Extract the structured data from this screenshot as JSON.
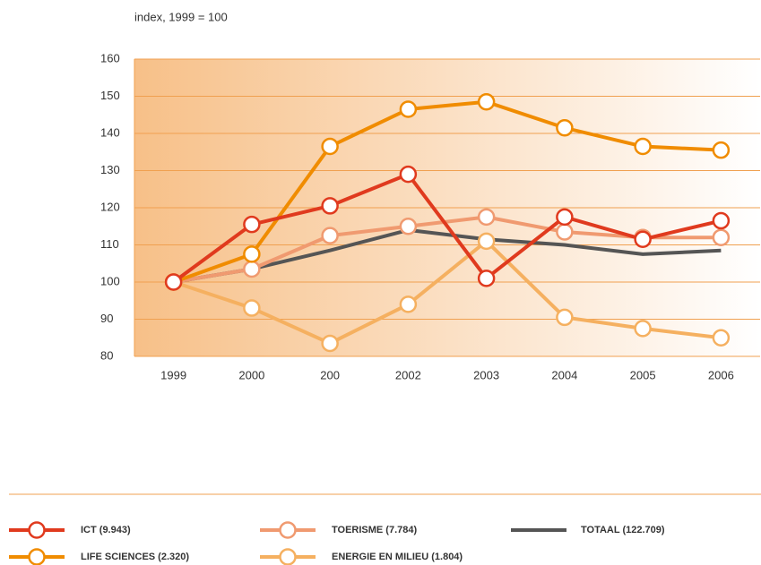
{
  "chart_data": {
    "type": "line",
    "subtitle": "index, 1999 = 100",
    "categories": [
      "1999",
      "2000",
      "200",
      "2002",
      "2003",
      "2004",
      "2005",
      "2006"
    ],
    "series": [
      {
        "name": "ICT (9.943)",
        "color": "#e03a1e",
        "marker": true,
        "values": [
          100,
          115.5,
          120.5,
          129,
          101,
          117.5,
          111.5,
          116.5
        ]
      },
      {
        "name": "LIFE SCIENCES (2.320)",
        "color": "#f08c00",
        "marker": true,
        "values": [
          100,
          107.5,
          136.5,
          146.5,
          148.5,
          141.5,
          136.5,
          135.5
        ]
      },
      {
        "name": "TOERISME (7.784)",
        "color": "#f09a70",
        "marker": true,
        "values": [
          100,
          103.5,
          112.5,
          115,
          117.5,
          113.5,
          112,
          112
        ]
      },
      {
        "name": "ENERGIE EN MILIEU (1.804)",
        "color": "#f5b060",
        "marker": true,
        "values": [
          100,
          93,
          83.5,
          94,
          111,
          90.5,
          87.5,
          85
        ]
      },
      {
        "name": "TOTAAL (122.709)",
        "color": "#555555",
        "marker": false,
        "values": [
          100,
          103.5,
          108.5,
          114,
          111.5,
          110,
          107.5,
          108.5
        ]
      }
    ],
    "ylim": [
      80,
      160
    ],
    "yticks": [
      80,
      90,
      100,
      110,
      120,
      130,
      140,
      150,
      160
    ],
    "grid": true
  }
}
